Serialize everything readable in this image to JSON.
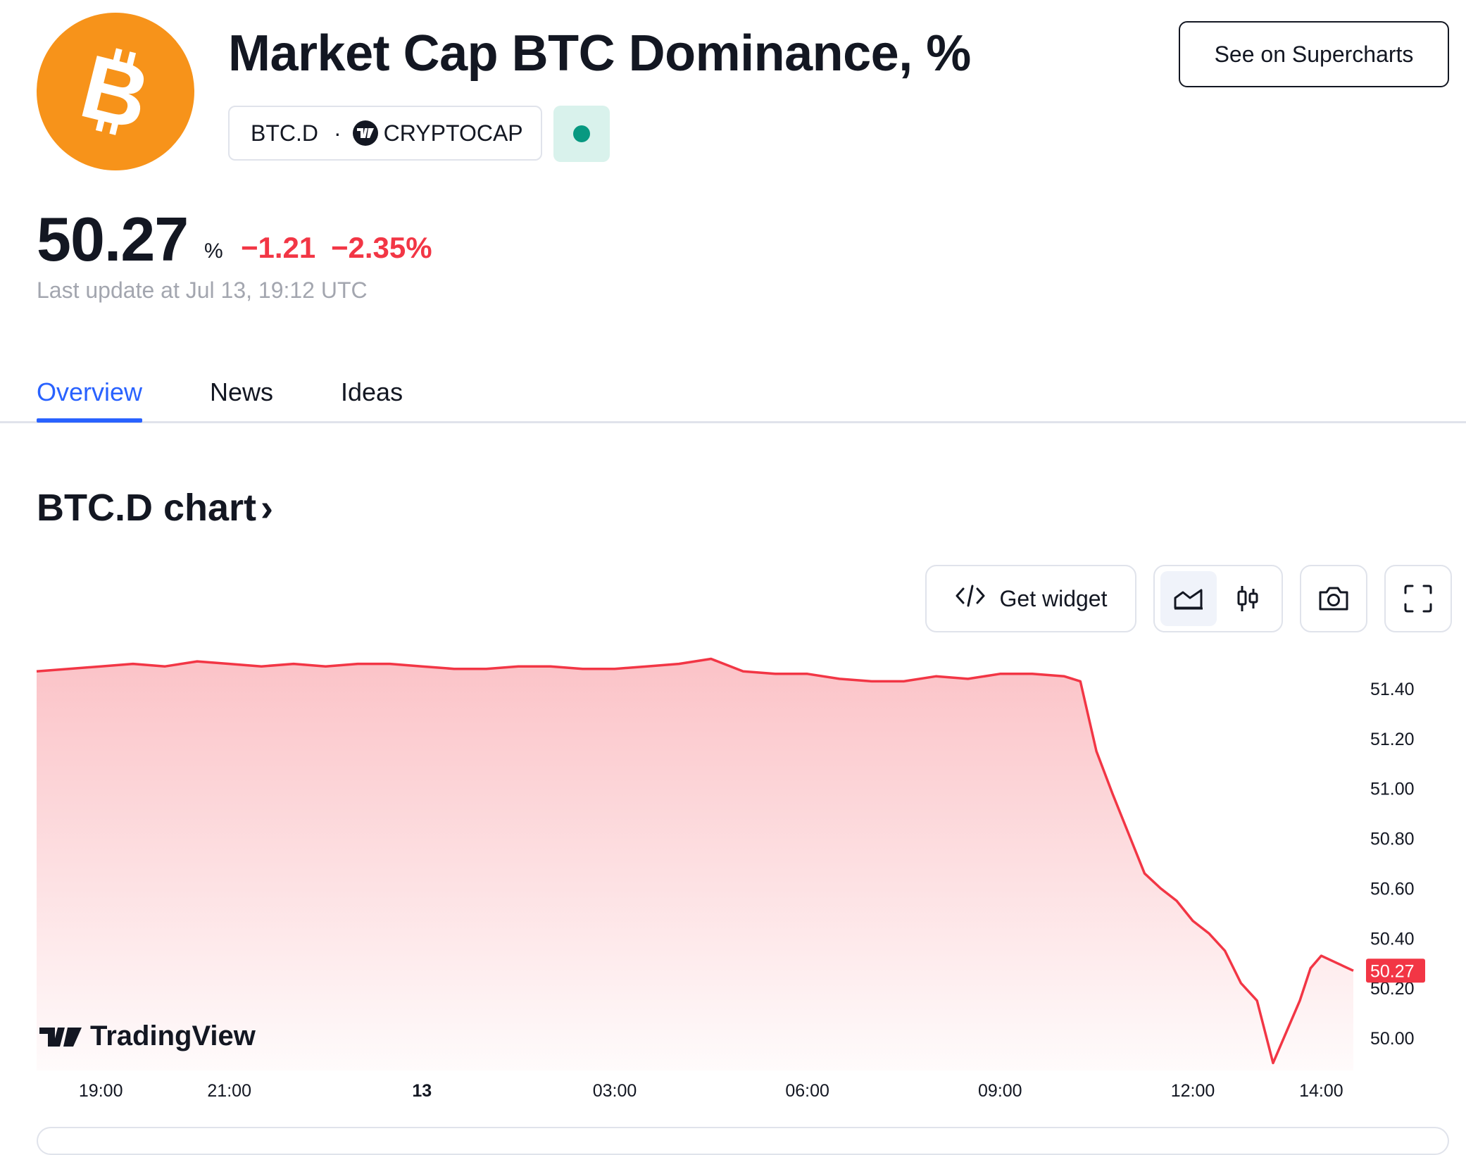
{
  "header": {
    "title": "Market Cap BTC Dominance, %",
    "symbol": "BTC.D",
    "separator": "·",
    "exchange": "CRYPTOCAP",
    "exchange_logo_text": "TV",
    "logo_glyph": "B",
    "see_supercharts": "See on Supercharts"
  },
  "quote": {
    "price": "50.27",
    "unit": "%",
    "change": "−1.21",
    "change_pct": "−2.35%",
    "last_update": "Last update at Jul 13, 19:12 UTC"
  },
  "tabs": [
    {
      "label": "Overview",
      "active": true
    },
    {
      "label": "News",
      "active": false
    },
    {
      "label": "Ideas",
      "active": false
    }
  ],
  "chart_section": {
    "heading": "BTC.D chart",
    "chevron": "›",
    "get_widget": "Get widget",
    "brand": "TradingView"
  },
  "icons": [
    "code-icon",
    "area-chart-icon",
    "candles-icon",
    "camera-icon",
    "fullscreen-icon"
  ],
  "colors": {
    "bitcoin": "#f7931a",
    "line": "#f23645",
    "accent": "#2962ff",
    "status": "#089981"
  },
  "chart_data": {
    "type": "area",
    "title": "",
    "xlabel": "",
    "ylabel": "",
    "x_ticks": [
      "19:00",
      "21:00",
      "13",
      "03:00",
      "06:00",
      "09:00",
      "12:00",
      "14:00"
    ],
    "x_ticks_bold": [
      "13"
    ],
    "y_ticks": [
      "51.40",
      "51.20",
      "51.00",
      "50.80",
      "50.60",
      "50.40",
      "50.20",
      "50.00"
    ],
    "ylim": [
      49.87,
      51.53
    ],
    "last_value_label": "50.27",
    "series": [
      {
        "x": [
          "18:00",
          "18:30",
          "19:00",
          "19:30",
          "20:00",
          "20:30",
          "21:00",
          "21:30",
          "22:00",
          "22:30",
          "23:00",
          "23:30",
          "00:00",
          "00:30",
          "01:00",
          "01:30",
          "02:00",
          "02:30",
          "03:00",
          "03:30",
          "04:00",
          "04:30",
          "05:00",
          "05:30",
          "06:00",
          "06:30",
          "07:00",
          "07:30",
          "08:00",
          "08:30",
          "09:00",
          "09:30",
          "10:00",
          "10:15",
          "10:30",
          "10:45",
          "11:00",
          "11:15",
          "11:30",
          "11:45",
          "12:00",
          "12:15",
          "12:30",
          "12:45",
          "13:00",
          "13:15",
          "13:30",
          "13:40",
          "13:50",
          "14:00",
          "14:15",
          "14:30"
        ],
        "values": [
          51.47,
          51.48,
          51.49,
          51.5,
          51.49,
          51.51,
          51.5,
          51.49,
          51.5,
          51.49,
          51.5,
          51.5,
          51.49,
          51.48,
          51.48,
          51.49,
          51.49,
          51.48,
          51.48,
          51.49,
          51.5,
          51.52,
          51.47,
          51.46,
          51.46,
          51.44,
          51.43,
          51.43,
          51.45,
          51.44,
          51.46,
          51.46,
          51.45,
          51.43,
          51.15,
          50.98,
          50.82,
          50.66,
          50.6,
          50.55,
          50.47,
          50.42,
          50.35,
          50.22,
          50.15,
          49.9,
          50.05,
          50.15,
          50.28,
          50.33,
          50.3,
          50.27
        ]
      }
    ]
  }
}
